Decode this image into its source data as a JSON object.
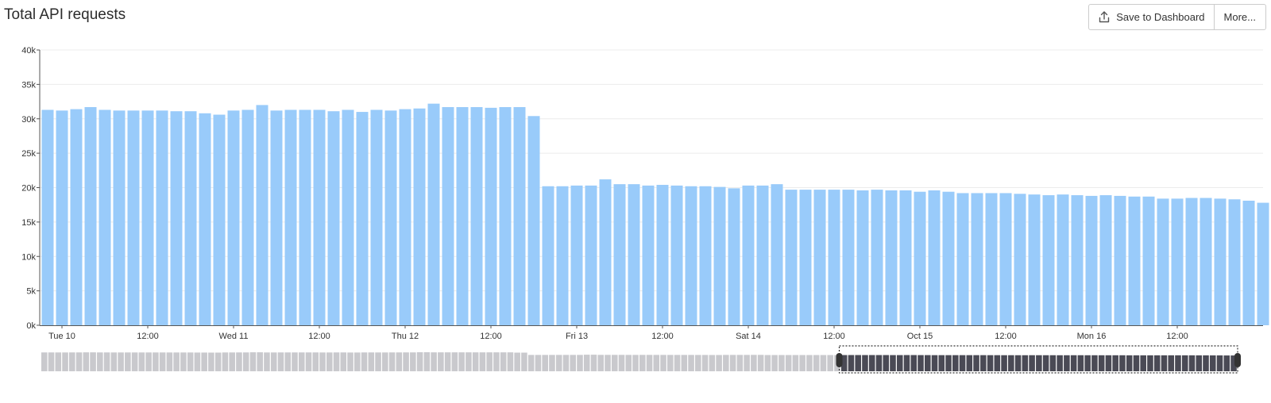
{
  "header": {
    "title": "Total API requests",
    "save_label": "Save to Dashboard",
    "more_label": "More...",
    "save_icon": "upload-icon"
  },
  "colors": {
    "bar": "#99cbfa",
    "grid": "#ececec",
    "axis": "#555555",
    "overview_bar": "#c9c9cd",
    "overview_selected_bar": "#4a4a55",
    "overview_handle": "#333333"
  },
  "chart_data": {
    "type": "bar",
    "title": "Total API requests",
    "xlabel": "",
    "ylabel": "",
    "ylim": [
      0,
      40000
    ],
    "y_ticks": [
      {
        "value": 0,
        "label": "0k"
      },
      {
        "value": 5000,
        "label": "5k"
      },
      {
        "value": 10000,
        "label": "10k"
      },
      {
        "value": 15000,
        "label": "15k"
      },
      {
        "value": 20000,
        "label": "20k"
      },
      {
        "value": 25000,
        "label": "25k"
      },
      {
        "value": 30000,
        "label": "30k"
      },
      {
        "value": 35000,
        "label": "35k"
      },
      {
        "value": 40000,
        "label": "40k"
      }
    ],
    "x_range": [
      "Oct 9 21:00",
      "Oct 16 22:00"
    ],
    "bar_interval_hours": 2,
    "x_ticks": [
      {
        "hours": 3,
        "label": "Tue 10"
      },
      {
        "hours": 15,
        "label": "12:00"
      },
      {
        "hours": 27,
        "label": "Wed 11"
      },
      {
        "hours": 39,
        "label": "12:00"
      },
      {
        "hours": 51,
        "label": "Thu 12"
      },
      {
        "hours": 63,
        "label": "12:00"
      },
      {
        "hours": 75,
        "label": "Fri 13"
      },
      {
        "hours": 87,
        "label": "12:00"
      },
      {
        "hours": 99,
        "label": "Sat 14"
      },
      {
        "hours": 111,
        "label": "12:00"
      },
      {
        "hours": 123,
        "label": "Oct 15"
      },
      {
        "hours": 135,
        "label": "12:00"
      },
      {
        "hours": 147,
        "label": "Mon 16"
      },
      {
        "hours": 159,
        "label": "12:00"
      }
    ],
    "values": [
      31300,
      31200,
      31400,
      31700,
      31300,
      31200,
      31200,
      31200,
      31200,
      31100,
      31100,
      30800,
      30600,
      31200,
      31300,
      32000,
      31200,
      31300,
      31300,
      31300,
      31100,
      31300,
      31000,
      31300,
      31200,
      31400,
      31500,
      32200,
      31700,
      31700,
      31700,
      31600,
      31700,
      31700,
      30400,
      20200,
      20200,
      20300,
      20300,
      21200,
      20500,
      20500,
      20300,
      20400,
      20300,
      20200,
      20200,
      20100,
      19900,
      20300,
      20300,
      20500,
      19700,
      19700,
      19700,
      19700,
      19700,
      19600,
      19700,
      19600,
      19600,
      19400,
      19600,
      19400,
      19200,
      19200,
      19200,
      19200,
      19100,
      19000,
      18900,
      19000,
      18900,
      18800,
      18900,
      18800,
      18700,
      18700,
      18400,
      18400,
      18500,
      18500,
      18400,
      18300,
      18100,
      17800
    ],
    "grid": true,
    "legend": "none",
    "overview": {
      "selection_range": [
        0.667,
        1.0
      ]
    }
  }
}
